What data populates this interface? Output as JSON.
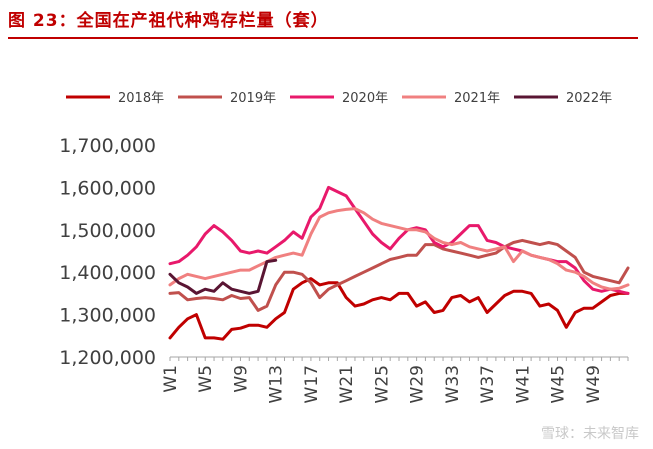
{
  "figure": {
    "title": "图 23：全国在产祖代种鸡存栏量（套）",
    "watermark": "雪球：未来智库"
  },
  "colors": {
    "title": "#c00000",
    "2018年": "#c00000",
    "2019年": "#c0504d",
    "2020年": "#e8196b",
    "2021年": "#f08080",
    "2022年": "#5a1533"
  },
  "chart_data": {
    "type": "line",
    "title": "图 23：全国在产祖代种鸡存栏量（套）",
    "xlabel": "",
    "ylabel": "",
    "ylim": [
      1200000,
      1700000
    ],
    "yticks": [
      1200000,
      1300000,
      1400000,
      1500000,
      1600000,
      1700000
    ],
    "ytick_labels": [
      "1,200,000",
      "1,300,000",
      "1,400,000",
      "1,500,000",
      "1,600,000",
      "1,700,000"
    ],
    "xtick_labels": [
      "W1",
      "W5",
      "W9",
      "W13",
      "W17",
      "W21",
      "W25",
      "W29",
      "W33",
      "W37",
      "W41",
      "W45",
      "W49"
    ],
    "xtick_weeks": [
      1,
      5,
      9,
      13,
      17,
      21,
      25,
      29,
      33,
      37,
      41,
      45,
      49
    ],
    "legend_position": "top",
    "grid": false,
    "series": [
      {
        "name": "2018年",
        "color": "#c00000",
        "x_start": 1,
        "values": [
          1245000,
          1270000,
          1290000,
          1300000,
          1245000,
          1245000,
          1242000,
          1265000,
          1268000,
          1275000,
          1275000,
          1270000,
          1290000,
          1305000,
          1360000,
          1375000,
          1385000,
          1370000,
          1375000,
          1375000,
          1340000,
          1320000,
          1325000,
          1335000,
          1340000,
          1335000,
          1350000,
          1350000,
          1320000,
          1330000,
          1305000,
          1310000,
          1340000,
          1345000,
          1330000,
          1340000,
          1305000,
          1325000,
          1345000,
          1355000,
          1355000,
          1350000,
          1320000,
          1325000,
          1310000,
          1270000,
          1305000,
          1315000,
          1315000,
          1330000,
          1345000,
          1350000,
          1350000
        ]
      },
      {
        "name": "2019年",
        "color": "#c0504d",
        "x_start": 1,
        "values": [
          1350000,
          1352000,
          1335000,
          1338000,
          1340000,
          1338000,
          1335000,
          1345000,
          1338000,
          1340000,
          1310000,
          1320000,
          1370000,
          1400000,
          1400000,
          1395000,
          1375000,
          1340000,
          1360000,
          1370000,
          1380000,
          1390000,
          1400000,
          1410000,
          1420000,
          1430000,
          1435000,
          1440000,
          1440000,
          1465000,
          1465000,
          1455000,
          1450000,
          1445000,
          1440000,
          1435000,
          1440000,
          1445000,
          1460000,
          1470000,
          1475000,
          1470000,
          1465000,
          1470000,
          1465000,
          1450000,
          1435000,
          1400000,
          1390000,
          1385000,
          1380000,
          1375000,
          1410000
        ]
      },
      {
        "name": "2020年",
        "color": "#e8196b",
        "x_start": 1,
        "values": [
          1420000,
          1425000,
          1440000,
          1460000,
          1490000,
          1510000,
          1495000,
          1475000,
          1450000,
          1445000,
          1450000,
          1445000,
          1460000,
          1475000,
          1495000,
          1480000,
          1530000,
          1550000,
          1600000,
          1590000,
          1580000,
          1550000,
          1520000,
          1490000,
          1470000,
          1455000,
          1480000,
          1500000,
          1505000,
          1500000,
          1470000,
          1460000,
          1470000,
          1490000,
          1510000,
          1510000,
          1475000,
          1470000,
          1460000,
          1455000,
          1450000,
          1440000,
          1435000,
          1430000,
          1425000,
          1425000,
          1410000,
          1380000,
          1360000,
          1355000,
          1360000,
          1355000,
          1350000
        ]
      },
      {
        "name": "2021年",
        "color": "#f08080",
        "x_start": 1,
        "values": [
          1370000,
          1385000,
          1395000,
          1390000,
          1385000,
          1390000,
          1395000,
          1400000,
          1405000,
          1405000,
          1415000,
          1425000,
          1435000,
          1440000,
          1445000,
          1440000,
          1490000,
          1530000,
          1540000,
          1545000,
          1548000,
          1550000,
          1540000,
          1525000,
          1515000,
          1510000,
          1505000,
          1500000,
          1500000,
          1495000,
          1480000,
          1470000,
          1465000,
          1470000,
          1460000,
          1455000,
          1450000,
          1455000,
          1460000,
          1425000,
          1450000,
          1440000,
          1435000,
          1430000,
          1420000,
          1405000,
          1400000,
          1390000,
          1375000,
          1365000,
          1360000,
          1362000,
          1370000
        ]
      },
      {
        "name": "2022年",
        "color": "#5a1533",
        "x_start": 1,
        "values": [
          1395000,
          1375000,
          1365000,
          1350000,
          1360000,
          1355000,
          1375000,
          1360000,
          1355000,
          1350000,
          1355000,
          1425000,
          1428000
        ]
      }
    ]
  }
}
